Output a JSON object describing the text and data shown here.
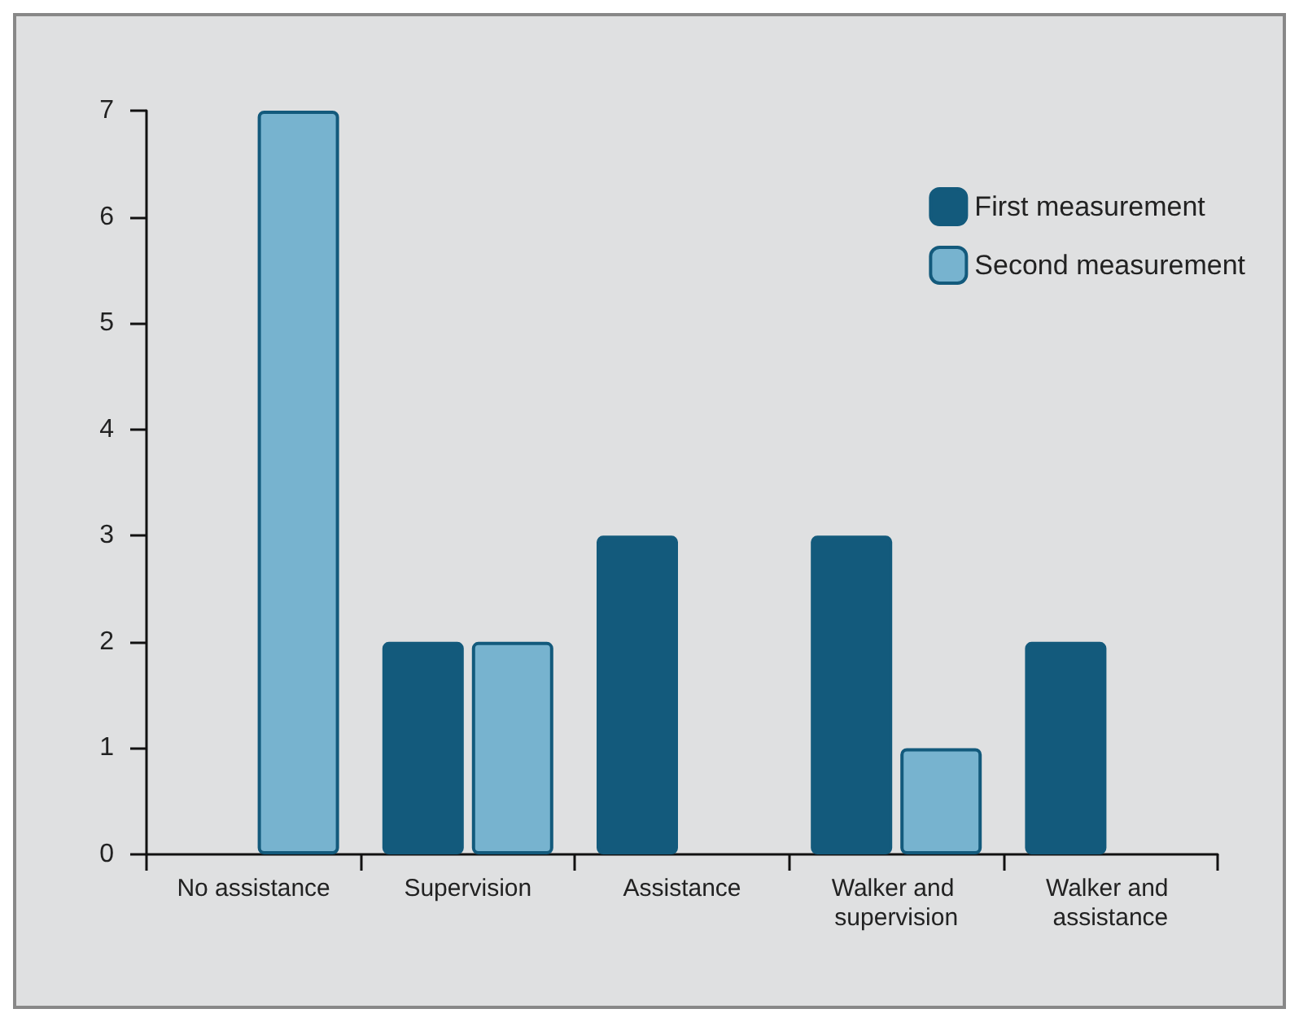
{
  "chart_data": {
    "type": "bar",
    "categories": [
      "No assistance",
      "Supervision",
      "Assistance",
      "Walker and supervision",
      "Walker and assistance"
    ],
    "series": [
      {
        "name": "First measurement",
        "color": "#135a7c",
        "values": [
          null,
          2,
          3,
          3,
          2
        ]
      },
      {
        "name": "Second measurement",
        "color": "#77b3cf",
        "values": [
          7,
          2,
          null,
          1,
          null
        ]
      }
    ],
    "ylim": [
      0,
      7
    ],
    "yticks": [
      0,
      1,
      2,
      3,
      4,
      5,
      6,
      7
    ],
    "legend": "top right"
  }
}
